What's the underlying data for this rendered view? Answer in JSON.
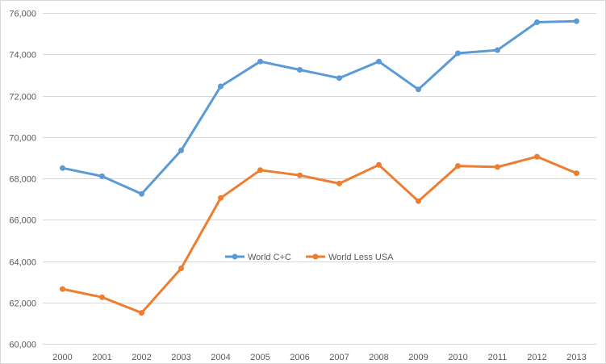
{
  "chart_data": {
    "type": "line",
    "title": "",
    "xlabel": "",
    "ylabel": "",
    "categories": [
      "2000",
      "2001",
      "2002",
      "2003",
      "2004",
      "2005",
      "2006",
      "2007",
      "2008",
      "2009",
      "2010",
      "2011",
      "2012",
      "2013"
    ],
    "ylim": [
      60000,
      76000
    ],
    "y_ticks": [
      60000,
      62000,
      64000,
      66000,
      68000,
      70000,
      72000,
      74000,
      76000
    ],
    "y_tick_labels": [
      "60,000",
      "62,000",
      "64,000",
      "66,000",
      "68,000",
      "70,000",
      "72,000",
      "74,000",
      "76,000"
    ],
    "grid": true,
    "legend_position": "center",
    "series": [
      {
        "name": "World C+C",
        "color": "#5b9bd5",
        "values": [
          68500,
          68100,
          67250,
          69350,
          72450,
          73650,
          73250,
          72850,
          73650,
          72300,
          74050,
          74200,
          75550,
          75600
        ]
      },
      {
        "name": "World Less USA",
        "color": "#ed7d31",
        "values": [
          62650,
          62250,
          61500,
          63650,
          67050,
          68400,
          68150,
          67750,
          68650,
          66900,
          68600,
          68550,
          69050,
          68250
        ]
      }
    ]
  },
  "colors": {
    "gridline": "#d9d9d9",
    "axis": "#d9d9d9",
    "tick_text": "#595959"
  }
}
